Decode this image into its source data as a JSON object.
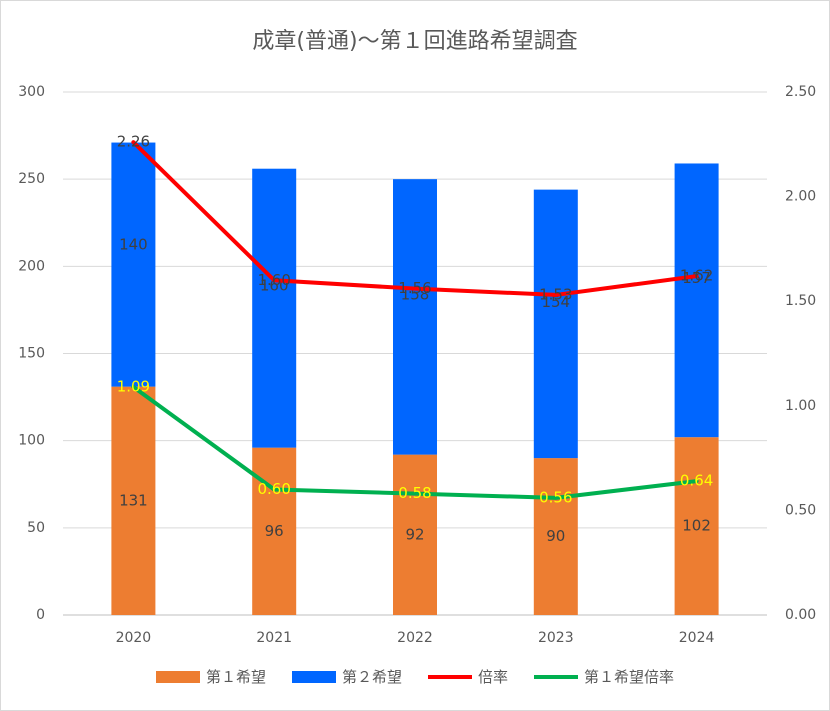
{
  "chart_data": {
    "type": "bar",
    "title": "成章(普通)〜第１回進路希望調査",
    "categories": [
      "2020",
      "2021",
      "2022",
      "2023",
      "2024"
    ],
    "stacked": true,
    "series": [
      {
        "name": "第１希望",
        "type": "bar",
        "axis": "left",
        "color": "#ED7D31",
        "values": [
          131,
          96,
          92,
          90,
          102
        ]
      },
      {
        "name": "第２希望",
        "type": "bar",
        "axis": "left",
        "color": "#0066FF",
        "values": [
          140,
          160,
          158,
          154,
          157
        ]
      },
      {
        "name": "倍率",
        "type": "line",
        "axis": "right",
        "color": "#FF0000",
        "label_color": "#404040",
        "values": [
          2.26,
          1.6,
          1.56,
          1.53,
          1.62
        ]
      },
      {
        "name": "第１希望倍率",
        "type": "line",
        "axis": "right",
        "color": "#00B050",
        "label_color": "#FFFF00",
        "values": [
          1.09,
          0.6,
          0.58,
          0.56,
          0.64
        ]
      }
    ],
    "left_axis": {
      "min": 0,
      "max": 300,
      "ticks": [
        "0",
        "50",
        "100",
        "150",
        "200",
        "250",
        "300"
      ]
    },
    "right_axis": {
      "min": 0,
      "max": 2.5,
      "ticks": [
        "0.00",
        "0.50",
        "1.00",
        "1.50",
        "2.00",
        "2.50"
      ]
    },
    "bar_label_color": "#404040",
    "grid": true,
    "legend_position": "bottom"
  }
}
